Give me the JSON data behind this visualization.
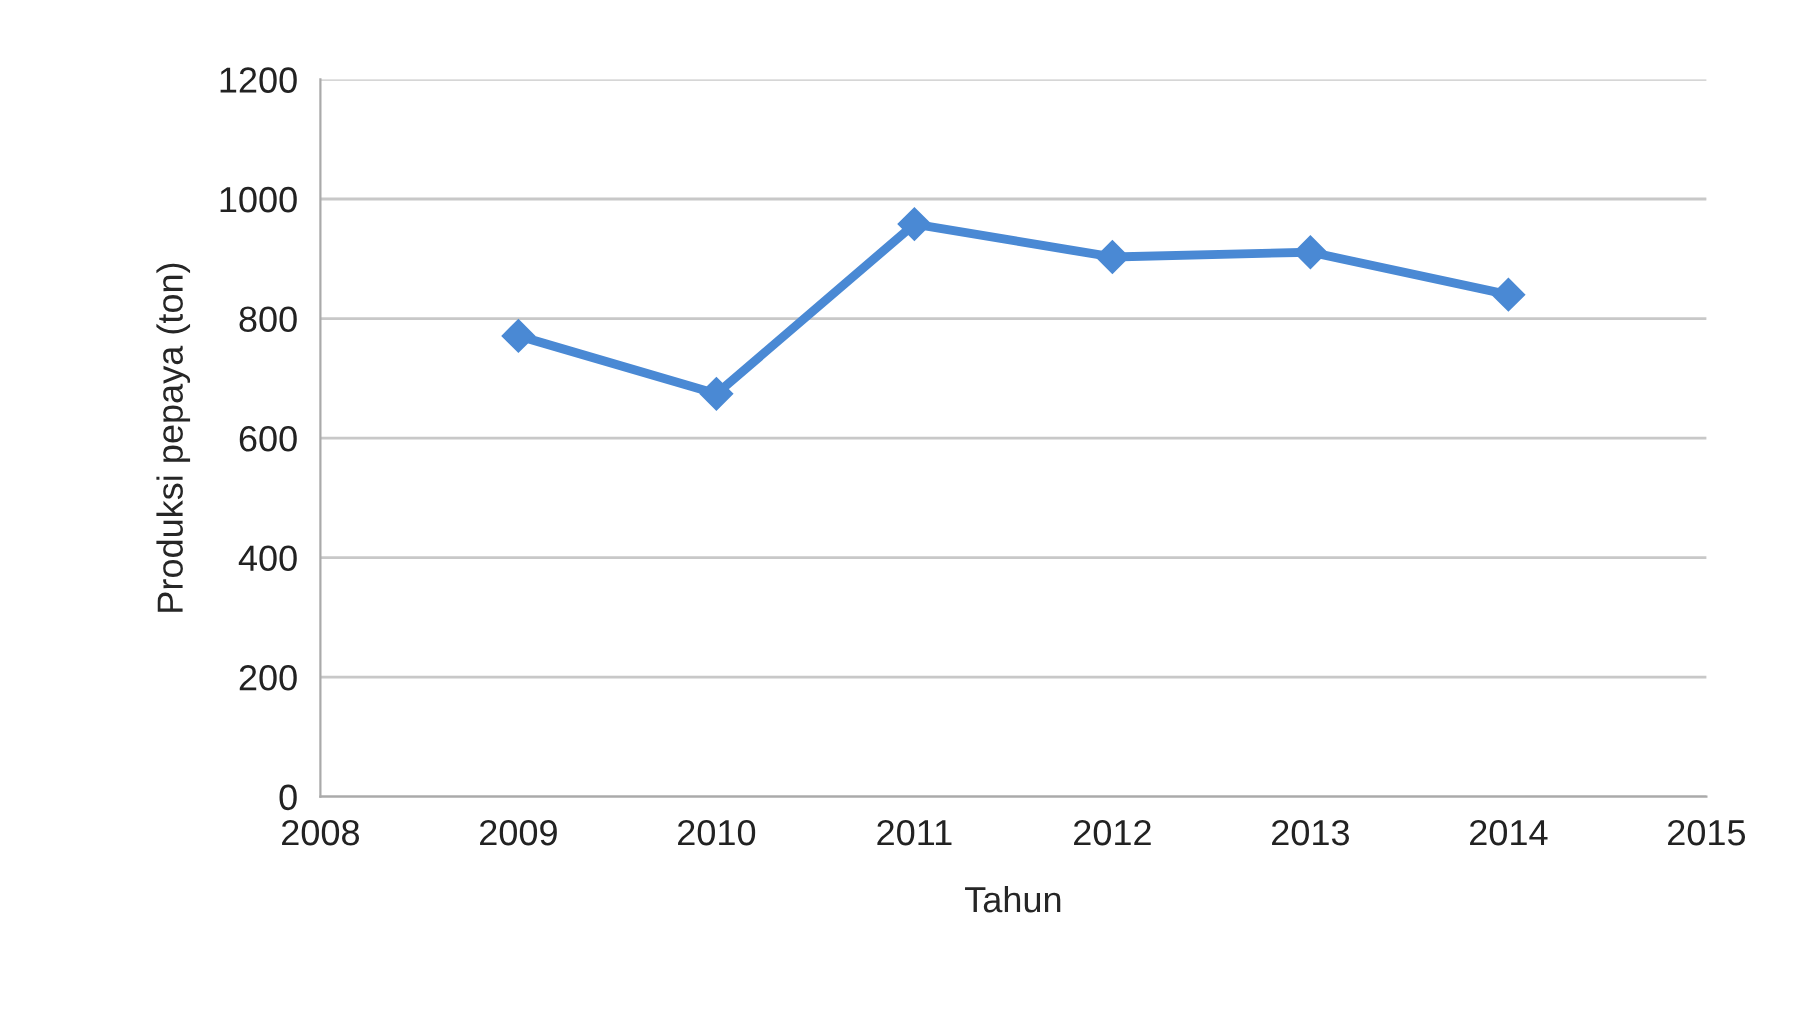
{
  "chart_data": {
    "type": "line",
    "xlabel": "Tahun",
    "ylabel": "Produksi pepaya (ton)",
    "x": [
      2009,
      2010,
      2011,
      2012,
      2013,
      2014
    ],
    "series": [
      {
        "color": "#4a89d4",
        "values": [
          771,
          674,
          958,
          903,
          911,
          840
        ]
      }
    ],
    "xlim": [
      2008,
      2015
    ],
    "xticks": [
      2008,
      2009,
      2010,
      2011,
      2012,
      2013,
      2014,
      2015
    ],
    "ylim": [
      0,
      1200
    ],
    "yticks": [
      0,
      200,
      400,
      600,
      800,
      1000,
      1200
    ],
    "grid": "y",
    "marker": "diamond",
    "line_style": "solid"
  }
}
